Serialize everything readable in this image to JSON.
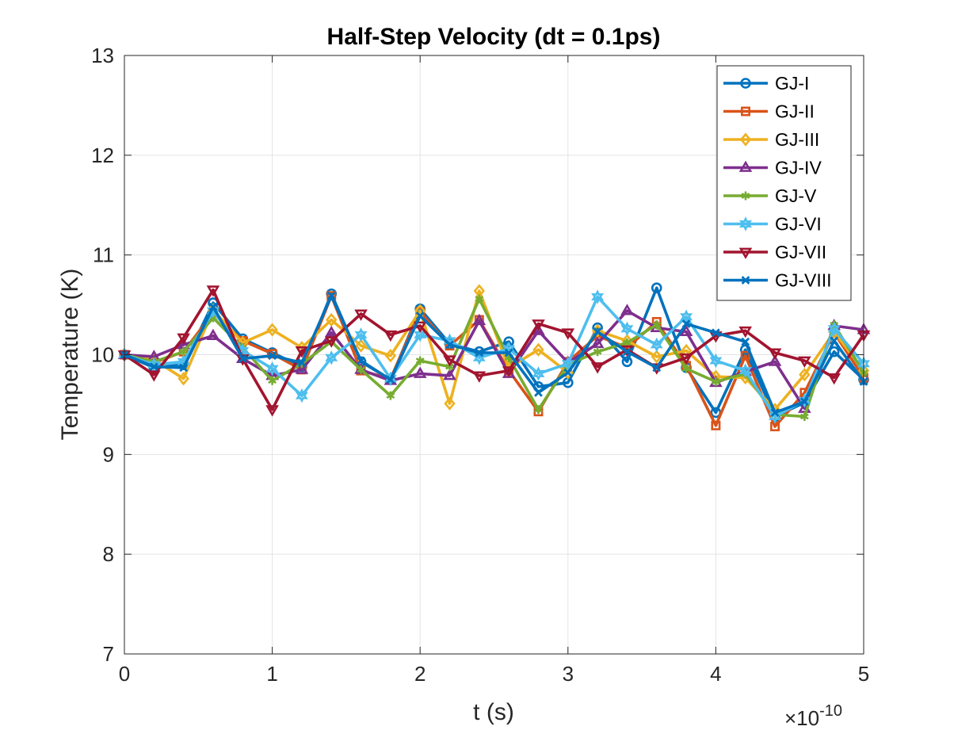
{
  "chart_data": {
    "type": "line",
    "title": "Half-Step Velocity (dt = 0.1ps)",
    "xlabel": "t (s)",
    "ylabel": "Temperature (K)",
    "x_exponent_label": "×10",
    "x_exponent_power": "-10",
    "xlim": [
      0,
      5
    ],
    "ylim": [
      7,
      13
    ],
    "xticks": [
      "0",
      "1",
      "2",
      "3",
      "4",
      "5"
    ],
    "yticks": [
      "7",
      "8",
      "9",
      "10",
      "11",
      "12",
      "13"
    ],
    "grid": true,
    "legend_position": "top-right",
    "x": [
      0,
      0.2,
      0.4,
      0.6,
      0.8,
      1.0,
      1.2,
      1.4,
      1.6,
      1.8,
      2.0,
      2.2,
      2.4,
      2.6,
      2.8,
      3.0,
      3.2,
      3.4,
      3.6,
      3.8,
      4.0,
      4.2,
      4.4,
      4.6,
      4.8,
      5.0
    ],
    "series": [
      {
        "name": "GJ-I",
        "color": "#0072BD",
        "marker": "circle",
        "values": [
          10.0,
          9.87,
          9.9,
          10.52,
          10.16,
          10.02,
          9.88,
          10.61,
          9.93,
          9.75,
          10.46,
          10.11,
          10.03,
          10.13,
          9.68,
          9.72,
          10.27,
          9.93,
          10.67,
          9.87,
          9.42,
          10.05,
          9.38,
          9.52,
          10.03,
          9.75
        ]
      },
      {
        "name": "GJ-II",
        "color": "#D95319",
        "marker": "square",
        "values": [
          10.0,
          9.92,
          10.03,
          10.42,
          10.14,
          10.01,
          9.85,
          10.59,
          9.84,
          9.76,
          10.43,
          10.09,
          10.35,
          9.84,
          9.43,
          9.93,
          10.19,
          10.07,
          10.33,
          9.89,
          9.29,
          9.99,
          9.28,
          9.62,
          10.22,
          9.77
        ]
      },
      {
        "name": "GJ-III",
        "color": "#EDB120",
        "marker": "diamond",
        "values": [
          10.0,
          9.95,
          9.76,
          10.45,
          10.12,
          10.25,
          10.07,
          10.35,
          10.09,
          9.99,
          10.44,
          9.51,
          10.64,
          9.87,
          10.05,
          9.82,
          10.24,
          10.14,
          9.98,
          10.04,
          9.78,
          9.77,
          9.45,
          9.8,
          10.23,
          9.84
        ]
      },
      {
        "name": "GJ-IV",
        "color": "#7E2F8E",
        "marker": "triangle-up",
        "values": [
          10.0,
          9.98,
          10.1,
          10.19,
          9.96,
          9.79,
          9.85,
          10.22,
          9.85,
          9.74,
          9.81,
          9.79,
          10.34,
          9.81,
          10.24,
          9.92,
          10.11,
          10.44,
          10.27,
          10.23,
          9.72,
          9.83,
          9.93,
          9.46,
          10.29,
          10.25
        ]
      },
      {
        "name": "GJ-V",
        "color": "#77AC30",
        "marker": "asterisk",
        "values": [
          10.0,
          9.93,
          10.03,
          10.37,
          10.07,
          9.74,
          9.91,
          10.13,
          9.85,
          9.59,
          9.94,
          9.88,
          10.56,
          9.97,
          9.45,
          9.9,
          10.03,
          10.12,
          10.3,
          9.86,
          9.73,
          9.81,
          9.4,
          9.38,
          10.3,
          9.82
        ]
      },
      {
        "name": "GJ-VI",
        "color": "#4DBEEE",
        "marker": "hexagram",
        "values": [
          10.0,
          9.9,
          9.93,
          10.44,
          10.04,
          9.86,
          9.59,
          9.97,
          10.2,
          9.76,
          10.2,
          10.14,
          9.97,
          10.06,
          9.81,
          9.91,
          10.58,
          10.26,
          10.1,
          10.38,
          9.94,
          9.84,
          9.38,
          9.54,
          10.26,
          9.91
        ]
      },
      {
        "name": "GJ-VII",
        "color": "#A2142F",
        "marker": "triangle-down",
        "values": [
          10.0,
          9.8,
          10.17,
          10.65,
          9.96,
          9.45,
          10.04,
          10.14,
          10.41,
          10.2,
          10.29,
          9.95,
          9.79,
          9.84,
          10.31,
          10.22,
          9.88,
          10.05,
          9.87,
          9.97,
          10.19,
          10.24,
          10.02,
          9.94,
          9.77,
          10.2
        ]
      },
      {
        "name": "GJ-VIII",
        "color": "#0072BD",
        "marker": "x",
        "values": [
          10.0,
          9.88,
          9.87,
          10.48,
          9.96,
          9.99,
          9.92,
          10.59,
          9.94,
          9.75,
          10.39,
          10.1,
          10.02,
          10.02,
          9.62,
          9.82,
          10.23,
          10.03,
          9.87,
          10.31,
          10.22,
          10.13,
          9.42,
          9.53,
          10.14,
          9.73
        ]
      }
    ]
  }
}
